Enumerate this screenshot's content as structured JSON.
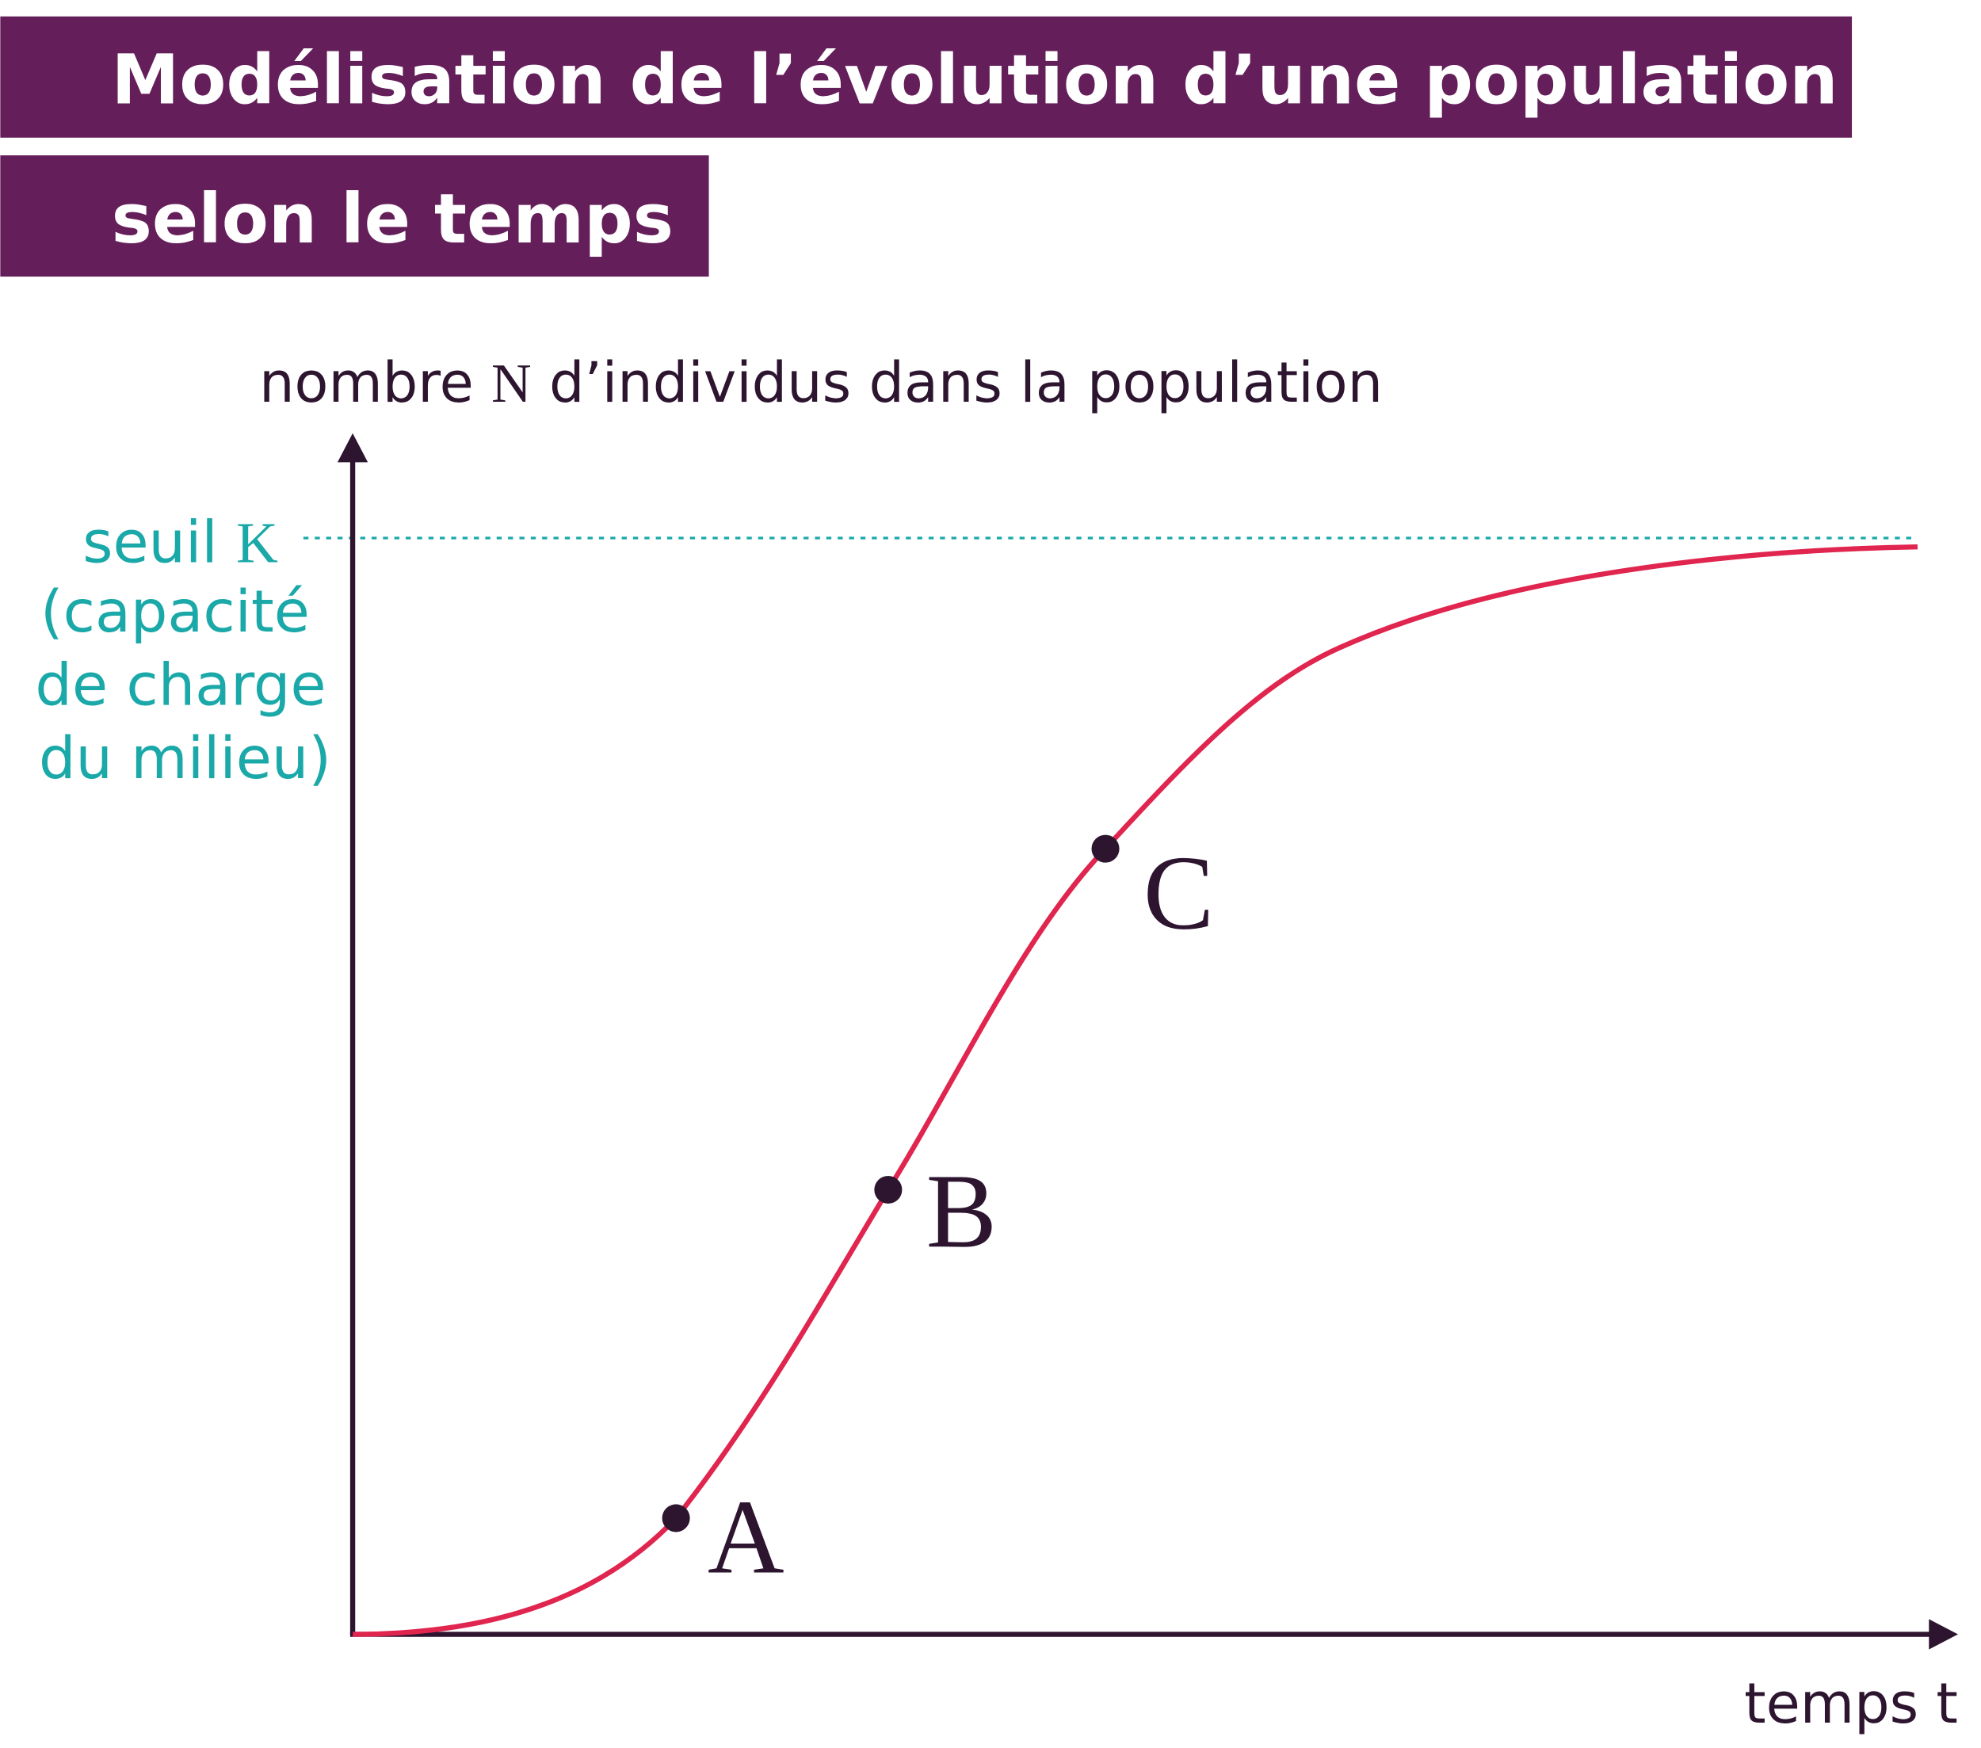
{
  "header": {
    "title_lines": [
      "Modélisation de l’évolution d’une population",
      "selon le temps"
    ]
  },
  "y_axis": {
    "label_parts": [
      "nombre ",
      "N",
      " d’individus dans la population"
    ]
  },
  "x_axis": {
    "label": "temps t"
  },
  "threshold": {
    "label_parts": [
      "seuil ",
      "K"
    ],
    "note_lines": [
      "(capacité",
      "de charge",
      "du milieu)"
    ]
  },
  "points": [
    {
      "label": "A"
    },
    {
      "label": "B"
    },
    {
      "label": "C"
    }
  ]
}
